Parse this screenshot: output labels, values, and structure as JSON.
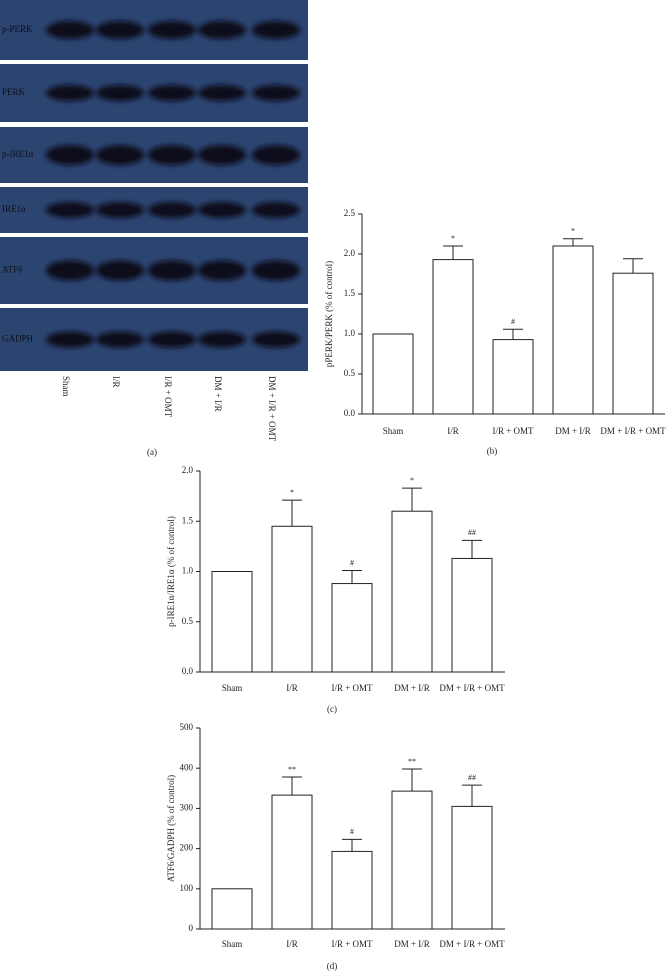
{
  "blot_panel": {
    "rows": [
      "p-PERK",
      "PERK",
      "p-IRE1α",
      "IRE1α",
      "ATF6",
      "GADPH"
    ],
    "lanes": [
      "Sham",
      "I/R",
      "I/R + OMT",
      "DM + I/R",
      "DM + I/R + OMT"
    ],
    "caption": "(a)"
  },
  "chart_data": [
    {
      "type": "bar",
      "caption": "(b)",
      "y_label": "pPERK/PERK (% of control)",
      "categories": [
        "Sham",
        "I/R",
        "I/R + OMT",
        "DM + I/R",
        "DM + I/R + OMT"
      ],
      "values": [
        1.0,
        1.93,
        0.93,
        2.1,
        1.76
      ],
      "errors": [
        0,
        0.17,
        0.13,
        0.09,
        0.18
      ],
      "annotations": [
        null,
        "*",
        "#",
        "*",
        null
      ],
      "color": "#ffffff",
      "ylim": [
        0,
        2.5
      ],
      "yticks": [
        {
          "value": 0,
          "label": "0.0"
        },
        0.5,
        {
          "value": 1,
          "label": "1.0"
        },
        1.5,
        {
          "value": 2,
          "label": "2.0"
        },
        2.5
      ]
    },
    {
      "type": "bar",
      "caption": "(c)",
      "y_label": "p-IRE1α/IRE1α (% of control)",
      "categories": [
        "Sham",
        "I/R",
        "I/R + OMT",
        "DM + I/R",
        "DM + I/R + OMT"
      ],
      "values": [
        1.0,
        1.45,
        0.88,
        1.6,
        1.13
      ],
      "errors": [
        0,
        0.26,
        0.13,
        0.23,
        0.18
      ],
      "annotations": [
        null,
        "*",
        "#",
        "*",
        "##"
      ],
      "color": "#ffffff",
      "ylim": [
        0,
        2
      ],
      "yticks": [
        {
          "value": 0,
          "label": "0.0"
        },
        0.5,
        {
          "value": 1,
          "label": "1.0"
        },
        1.5,
        {
          "value": 2,
          "label": "2.0"
        }
      ]
    },
    {
      "type": "bar",
      "caption": "(d)",
      "y_label": "ATF6/GADPH (% of control)",
      "categories": [
        "Sham",
        "I/R",
        "I/R + OMT",
        "DM + I/R",
        "DM + I/R + OMT"
      ],
      "values": [
        100,
        333,
        193,
        343,
        305
      ],
      "errors": [
        0,
        45,
        30,
        55,
        53
      ],
      "annotations": [
        null,
        "**",
        "#",
        "**",
        "##"
      ],
      "color": "#ffffff",
      "ylim": [
        0,
        500
      ],
      "yticks": [
        0,
        100,
        200,
        300,
        400,
        500
      ]
    }
  ]
}
